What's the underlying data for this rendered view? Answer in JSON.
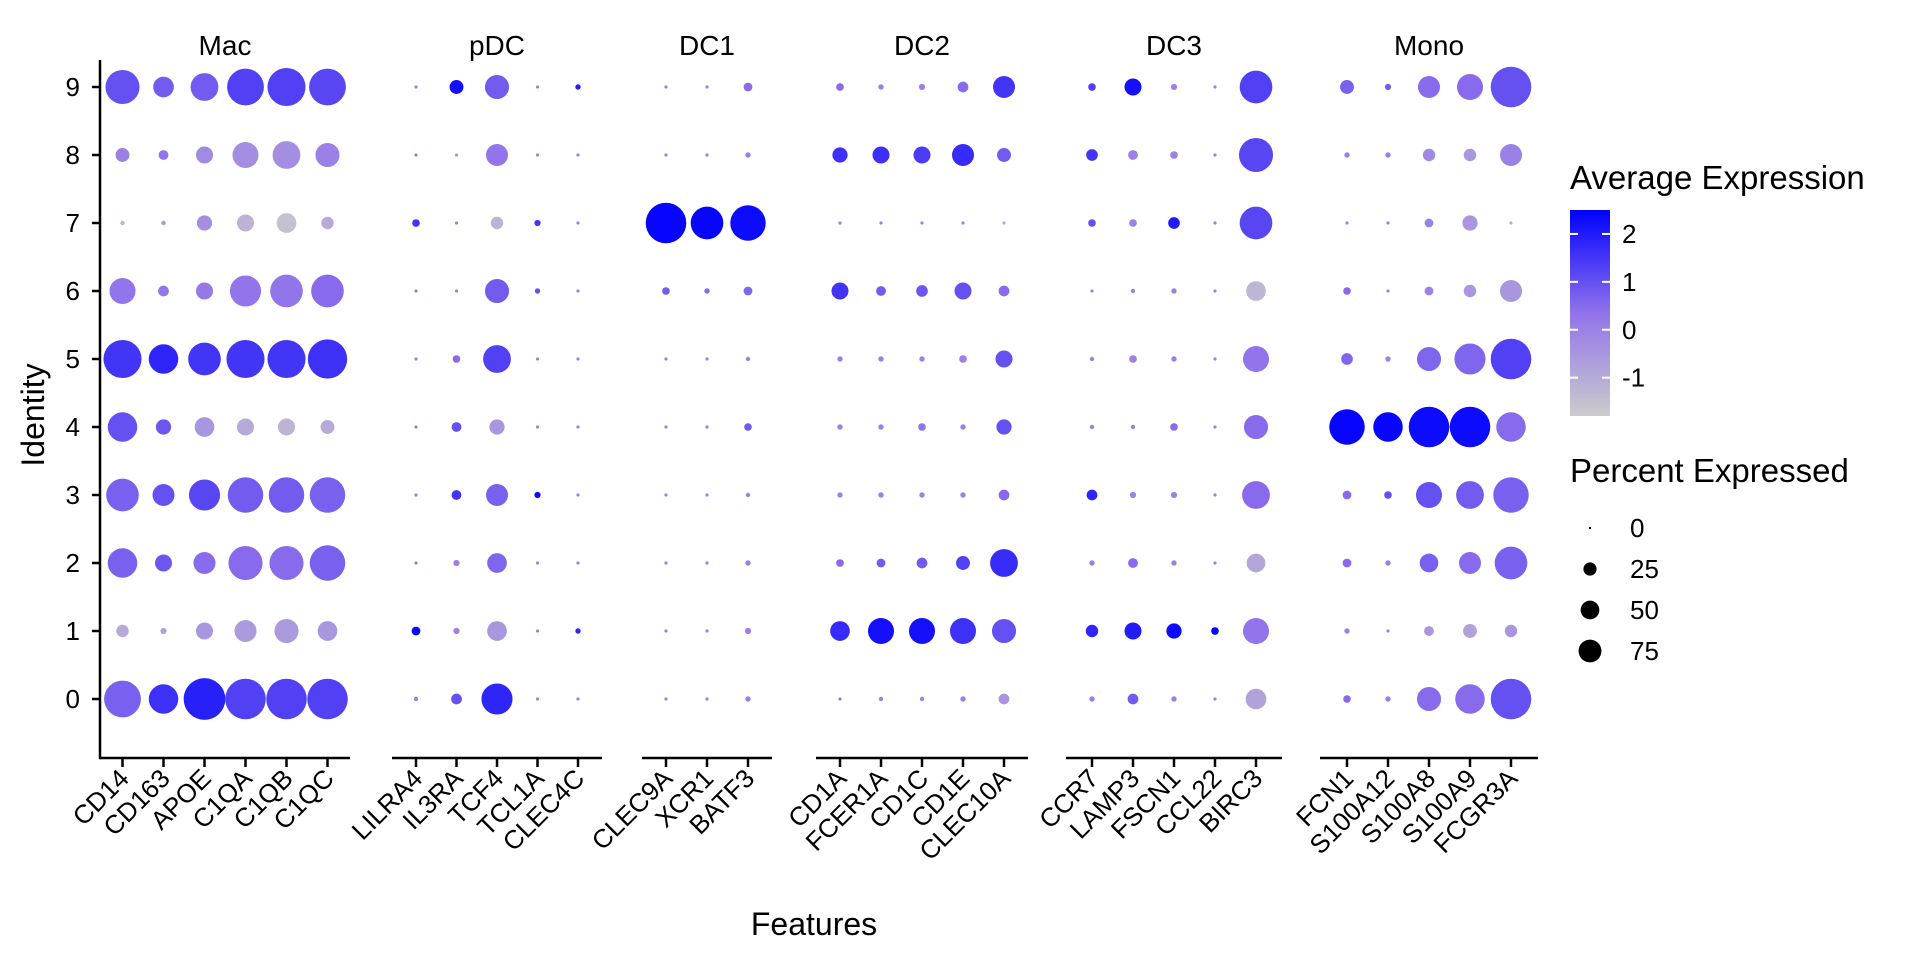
{
  "chart_data": {
    "type": "dotplot",
    "xlabel": "Features",
    "ylabel": "Identity",
    "identities": [
      "0",
      "1",
      "2",
      "3",
      "4",
      "5",
      "6",
      "7",
      "8",
      "9"
    ],
    "color_scale": {
      "title": "Average Expression",
      "low": "#cccccc",
      "high": "#0000ff",
      "min": -1.8,
      "max": 2.5,
      "ticks": [
        -1,
        0,
        1,
        2
      ]
    },
    "size_scale": {
      "title": "Percent Expressed",
      "ticks": [
        0,
        25,
        50,
        75
      ],
      "max": 100
    },
    "facets": [
      {
        "title": "Mac",
        "genes": [
          {
            "name": "CD14",
            "pct": [
              70,
              8,
              45,
              55,
              45,
              75,
              35,
              1,
              10,
              60
            ],
            "exp": [
              0.7,
              -1,
              0.7,
              0.7,
              1,
              1.5,
              0.3,
              -1.2,
              0,
              1
            ]
          },
          {
            "name": "CD163",
            "pct": [
              45,
              2,
              15,
              25,
              12,
              45,
              6,
              1,
              5,
              22
            ],
            "exp": [
              1.6,
              -0.8,
              0.9,
              1.0,
              0.9,
              1.8,
              0.3,
              -0.5,
              0.3,
              0.8
            ]
          },
          {
            "name": "APOE",
            "pct": [
              90,
              15,
              25,
              50,
              20,
              55,
              15,
              12,
              15,
              40
            ],
            "exp": [
              1.9,
              -0.5,
              0.5,
              1.2,
              -0.5,
              1.5,
              0.2,
              -0.3,
              -0.2,
              0.8
            ]
          },
          {
            "name": "C1QA",
            "pct": [
              85,
              25,
              60,
              65,
              15,
              75,
              50,
              15,
              35,
              70
            ],
            "exp": [
              1.3,
              -0.6,
              0.5,
              0.8,
              -1.0,
              1.5,
              0.3,
              -1.2,
              -0.3,
              1.3
            ]
          },
          {
            "name": "C1QB",
            "pct": [
              85,
              30,
              60,
              65,
              15,
              75,
              55,
              20,
              40,
              75
            ],
            "exp": [
              1.3,
              -0.6,
              0.5,
              0.8,
              -1.2,
              1.5,
              0.3,
              -1.5,
              -0.3,
              1.3
            ]
          },
          {
            "name": "C1QC",
            "pct": [
              85,
              20,
              65,
              65,
              10,
              80,
              55,
              8,
              30,
              70
            ],
            "exp": [
              1.3,
              -0.5,
              0.7,
              0.7,
              -1.0,
              1.6,
              0.5,
              -1.0,
              0,
              1.2
            ]
          }
        ]
      },
      {
        "title": "pDC",
        "genes": [
          {
            "name": "LILRA4",
            "pct": [
              1,
              4,
              0.5,
              0.5,
              0.5,
              0.5,
              0.5,
              3,
              0.5,
              0.5
            ],
            "exp": [
              0,
              2.3,
              0,
              0,
              0,
              0,
              0,
              1.5,
              0,
              0
            ]
          },
          {
            "name": "IL3RA",
            "pct": [
              6,
              2,
              2,
              5,
              5,
              3,
              0.5,
              0.5,
              0.5,
              10
            ],
            "exp": [
              1,
              0,
              0,
              1.5,
              1,
              0.5,
              0,
              0,
              -0.5,
              2.2
            ]
          },
          {
            "name": "TCF4",
            "pct": [
              50,
              20,
              20,
              25,
              12,
              40,
              30,
              8,
              25,
              30
            ],
            "exp": [
              1.8,
              -0.5,
              0.6,
              0.7,
              -0.5,
              1.3,
              0.8,
              -1.2,
              0.3,
              0.8
            ]
          },
          {
            "name": "TCL1A",
            "pct": [
              0.5,
              0.5,
              0.5,
              2,
              0.5,
              0.5,
              1.5,
              2,
              0.5,
              0.5
            ],
            "exp": [
              0,
              0,
              0,
              2.3,
              0,
              0,
              1,
              1.5,
              0,
              0
            ]
          },
          {
            "name": "CLEC4C",
            "pct": [
              0.5,
              1.5,
              0.5,
              0.5,
              0.5,
              0.5,
              0.5,
              0.5,
              0.5,
              1.5
            ],
            "exp": [
              0,
              1.8,
              0,
              0,
              0,
              0,
              0,
              0,
              0,
              2
            ]
          }
        ]
      },
      {
        "title": "DC1",
        "genes": [
          {
            "name": "CLEC9A",
            "pct": [
              0.5,
              0.5,
              0.5,
              0.5,
              0.5,
              0.5,
              3,
              85,
              0.5,
              0.5
            ],
            "exp": [
              0,
              0,
              0,
              0,
              0,
              0,
              0.8,
              2.4,
              0,
              0
            ]
          },
          {
            "name": "XCR1",
            "pct": [
              0.5,
              0.5,
              0.5,
              0.5,
              0.5,
              0.5,
              1.5,
              55,
              0.5,
              0.5
            ],
            "exp": [
              0,
              0,
              0,
              0,
              0,
              0,
              0.5,
              2.4,
              0,
              0
            ]
          },
          {
            "name": "BATF3",
            "pct": [
              1.5,
              2,
              1.5,
              1,
              3,
              1,
              4,
              65,
              1.5,
              4
            ],
            "exp": [
              0,
              0,
              0,
              0,
              0.8,
              0,
              0.6,
              2.3,
              0,
              0.5
            ]
          }
        ]
      },
      {
        "title": "DC2",
        "genes": [
          {
            "name": "CD1A",
            "pct": [
              0.5,
              20,
              3,
              1.5,
              1.5,
              1.5,
              15,
              0.5,
              12,
              3
            ],
            "exp": [
              0,
              1.7,
              0.5,
              0,
              0,
              0,
              1.5,
              0,
              1.6,
              0.5
            ]
          },
          {
            "name": "FCER1A",
            "pct": [
              1,
              35,
              4,
              1.5,
              1.5,
              1.5,
              5,
              0.5,
              15,
              1.5
            ],
            "exp": [
              0,
              2.2,
              0.8,
              0,
              0,
              0,
              0.8,
              0,
              1.6,
              0
            ]
          },
          {
            "name": "CD1C",
            "pct": [
              1,
              35,
              6,
              1.5,
              3,
              1.5,
              7,
              0.5,
              15,
              2
            ],
            "exp": [
              0,
              2.2,
              0.8,
              0,
              0.3,
              0,
              0.9,
              0,
              1.4,
              0
            ]
          },
          {
            "name": "CD1E",
            "pct": [
              1.5,
              35,
              10,
              1.5,
              1.5,
              3,
              15,
              0.5,
              25,
              6
            ],
            "exp": [
              0,
              1.6,
              1.3,
              0,
              0,
              0,
              1,
              0,
              1.7,
              0.5
            ]
          },
          {
            "name": "CLEC10A",
            "pct": [
              6,
              30,
              40,
              6,
              12,
              15,
              6,
              0.5,
              10,
              25
            ],
            "exp": [
              -0.5,
              1,
              1.7,
              0.5,
              1,
              1,
              0.5,
              -1,
              0.8,
              1.5
            ]
          }
        ]
      },
      {
        "title": "DC3",
        "genes": [
          {
            "name": "CCR7",
            "pct": [
              1.5,
              8,
              1.5,
              6,
              1,
              1,
              0.5,
              3,
              7,
              3
            ],
            "exp": [
              0,
              1.8,
              0,
              1.8,
              0,
              0,
              0,
              1,
              1.5,
              1.3
            ]
          },
          {
            "name": "LAMP3",
            "pct": [
              6,
              15,
              5,
              2,
              1,
              3,
              1,
              3,
              5,
              15
            ],
            "exp": [
              0.8,
              2,
              0.5,
              0,
              0,
              0,
              0,
              0,
              0,
              2.2
            ]
          },
          {
            "name": "FSCN1",
            "pct": [
              1.5,
              12,
              1.5,
              2,
              3,
              1.5,
              1.5,
              7,
              3,
              2
            ],
            "exp": [
              0,
              2.3,
              0,
              0,
              0.5,
              0,
              0,
              2,
              0,
              0
            ]
          },
          {
            "name": "CCL22",
            "pct": [
              0.5,
              3,
              0.5,
              0.5,
              0.5,
              0.5,
              0.5,
              0.5,
              0.5,
              0.5
            ],
            "exp": [
              0,
              2.4,
              0,
              0,
              0,
              0,
              0,
              0,
              0,
              0
            ]
          },
          {
            "name": "BIRC3",
            "pct": [
              22,
              35,
              18,
              40,
              30,
              35,
              20,
              55,
              60,
              55
            ],
            "exp": [
              -0.8,
              0.3,
              -0.9,
              0.5,
              0.5,
              0.3,
              -1.3,
              1.2,
              1.2,
              1.3
            ]
          }
        ]
      },
      {
        "title": "Mono",
        "genes": [
          {
            "name": "FCN1",
            "pct": [
              3,
              1.5,
              4,
              4,
              65,
              7,
              3,
              0.5,
              1.5,
              10
            ],
            "exp": [
              0.5,
              0,
              0.5,
              0.5,
              2.4,
              0.6,
              0.5,
              0,
              0,
              0.7
            ]
          },
          {
            "name": "S100A12",
            "pct": [
              1.5,
              0.5,
              1.5,
              3,
              45,
              1.5,
              0.5,
              0.5,
              1.5,
              2
            ],
            "exp": [
              0,
              0,
              0,
              1,
              2.4,
              0,
              0,
              0,
              0,
              0.8
            ]
          },
          {
            "name": "S100A8",
            "pct": [
              30,
              5,
              18,
              35,
              85,
              30,
              4,
              4,
              8,
              25
            ],
            "exp": [
              0.5,
              -0.5,
              0.7,
              1,
              2.3,
              0.6,
              0,
              0,
              -0.2,
              0.5
            ]
          },
          {
            "name": "S100A9",
            "pct": [
              45,
              10,
              25,
              40,
              85,
              50,
              8,
              12,
              8,
              35
            ],
            "exp": [
              0.5,
              -0.8,
              0.5,
              0.8,
              2.3,
              0.6,
              -0.5,
              -0.5,
              -0.5,
              0.5
            ]
          },
          {
            "name": "FCGR3A",
            "pct": [
              85,
              8,
              55,
              65,
              45,
              85,
              25,
              0.5,
              25,
              85
            ],
            "exp": [
              1,
              -0.5,
              0.7,
              0.7,
              0.5,
              1.3,
              -0.5,
              -1,
              0,
              1
            ]
          }
        ]
      }
    ]
  }
}
